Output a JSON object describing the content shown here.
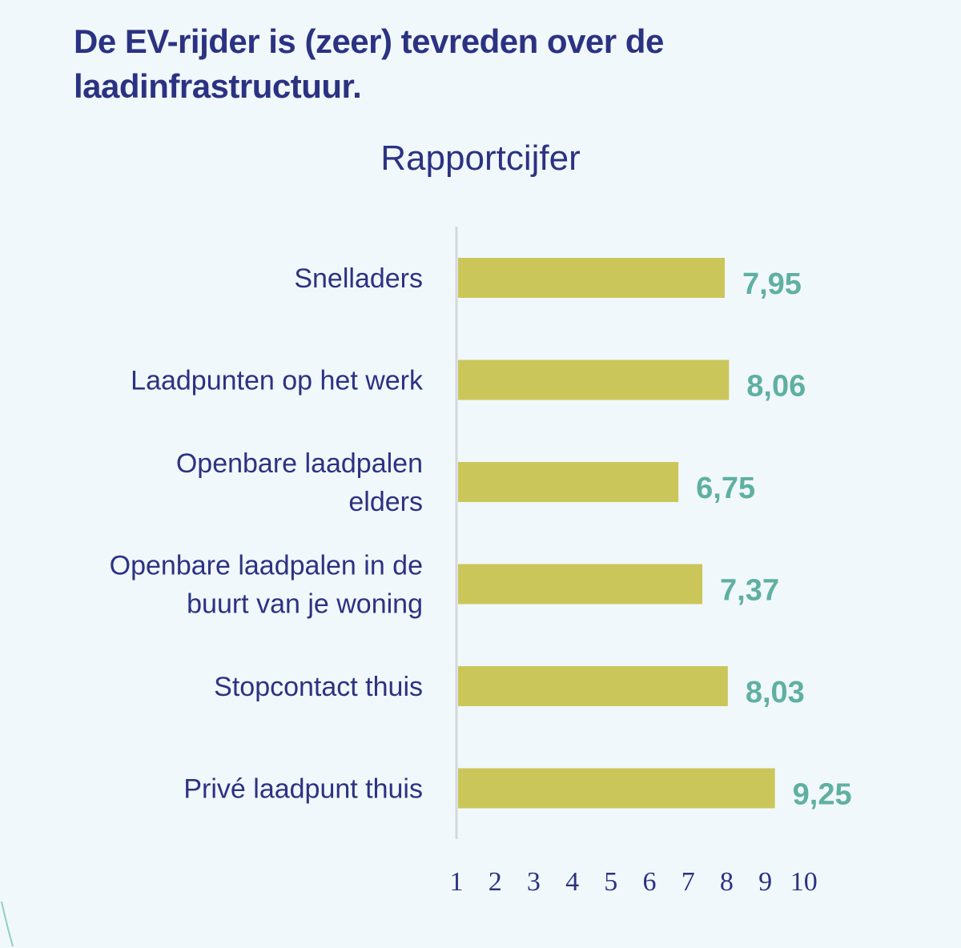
{
  "page": {
    "title": "De EV-rijder is (zeer) tevreden over de laadinfrastructuur."
  },
  "colors": {
    "background": "#f1f8fb",
    "title": "#2c3282",
    "bar": "#cbc65a",
    "value_label": "#5fb0a2",
    "axis": "#d4d8dc"
  },
  "chart_data": {
    "type": "bar",
    "orientation": "horizontal",
    "subtitle": "Rapportcijfer",
    "categories": [
      "Snelladers",
      "Laadpunten op het werk",
      "Openbare laadpalen elders",
      "Openbare laadpalen in de buurt van je woning",
      "Stopcontact thuis",
      "Privé laadpunt thuis"
    ],
    "category_lines": [
      [
        "Snelladers"
      ],
      [
        "Laadpunten op het werk"
      ],
      [
        "Openbare laadpalen",
        "elders"
      ],
      [
        "Openbare laadpalen in de",
        "buurt van je woning"
      ],
      [
        "Stopcontact thuis"
      ],
      [
        "Privé laadpunt thuis"
      ]
    ],
    "values": [
      7.95,
      8.06,
      6.75,
      7.37,
      8.03,
      9.25
    ],
    "value_labels": [
      "7,95",
      "8,06",
      "6,75",
      "7,37",
      "8,03",
      "9,25"
    ],
    "xlim": [
      1,
      10
    ],
    "xticks": [
      "1",
      "2",
      "3",
      "4",
      "5",
      "6",
      "7",
      "8",
      "9",
      "10"
    ],
    "xlabel": "",
    "ylabel": "",
    "grid": false,
    "legend": "none"
  }
}
